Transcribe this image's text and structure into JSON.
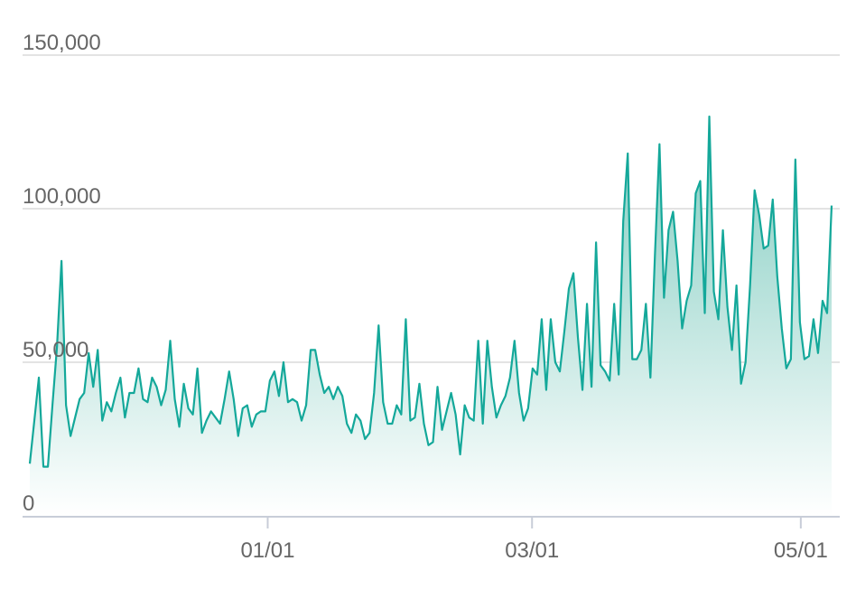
{
  "chart_data": {
    "type": "area",
    "title": "",
    "xlabel": "",
    "ylabel": "",
    "x_start": "2023-11-08",
    "x_end": "2024-05-08",
    "x_ticks": [
      "01/01",
      "03/01",
      "05/01"
    ],
    "y_ticks": [
      "0",
      "50,000",
      "100,000",
      "150,000"
    ],
    "ylim": [
      0,
      150000
    ],
    "grid": true,
    "legend": "none",
    "colors": {
      "line": "#14a89a",
      "fill_top": "#7fcbbf",
      "fill_bottom": "#ffffff",
      "grid": "#e3e3e3",
      "axis": "#c8cdd8",
      "text": "#666666"
    },
    "series": [
      {
        "values": [
          17000,
          31000,
          45000,
          16000,
          16000,
          36000,
          55000,
          83000,
          36000,
          26000,
          32000,
          38000,
          40000,
          53000,
          42000,
          54000,
          31000,
          37000,
          34000,
          40000,
          45000,
          32000,
          40000,
          40000,
          48000,
          38000,
          37000,
          45000,
          42000,
          36000,
          41000,
          57000,
          38000,
          29000,
          43000,
          35000,
          33000,
          48000,
          27000,
          31000,
          34000,
          32000,
          30000,
          38000,
          47000,
          38000,
          26000,
          35000,
          36000,
          29000,
          33000,
          34000,
          34000,
          44000,
          47000,
          39000,
          50000,
          37000,
          38000,
          37000,
          31000,
          36000,
          54000,
          54000,
          46000,
          40000,
          42000,
          38000,
          42000,
          39000,
          30000,
          27000,
          33000,
          31000,
          25000,
          27000,
          40000,
          62000,
          37000,
          30000,
          30000,
          36000,
          33000,
          64000,
          31000,
          32000,
          43000,
          30000,
          23000,
          24000,
          42000,
          28000,
          34000,
          40000,
          33000,
          20000,
          36000,
          32000,
          31000,
          57000,
          30000,
          57000,
          42000,
          32000,
          36000,
          39000,
          45000,
          57000,
          40000,
          31000,
          35000,
          48000,
          46000,
          64000,
          41000,
          64000,
          50000,
          47000,
          60000,
          74000,
          79000,
          58000,
          41000,
          69000,
          42000,
          89000,
          49000,
          47000,
          44000,
          69000,
          46000,
          96000,
          118000,
          51000,
          51000,
          54000,
          69000,
          45000,
          85000,
          121000,
          71000,
          93000,
          99000,
          83000,
          61000,
          70000,
          75000,
          105000,
          109000,
          66000,
          130000,
          73000,
          64000,
          93000,
          68000,
          54000,
          75000,
          43000,
          50000,
          75000,
          106000,
          98000,
          87000,
          88000,
          103000,
          78000,
          61000,
          48000,
          51000,
          116000,
          63000,
          51000,
          52000,
          64000,
          53000,
          70000,
          66000,
          101000
        ]
      }
    ]
  }
}
